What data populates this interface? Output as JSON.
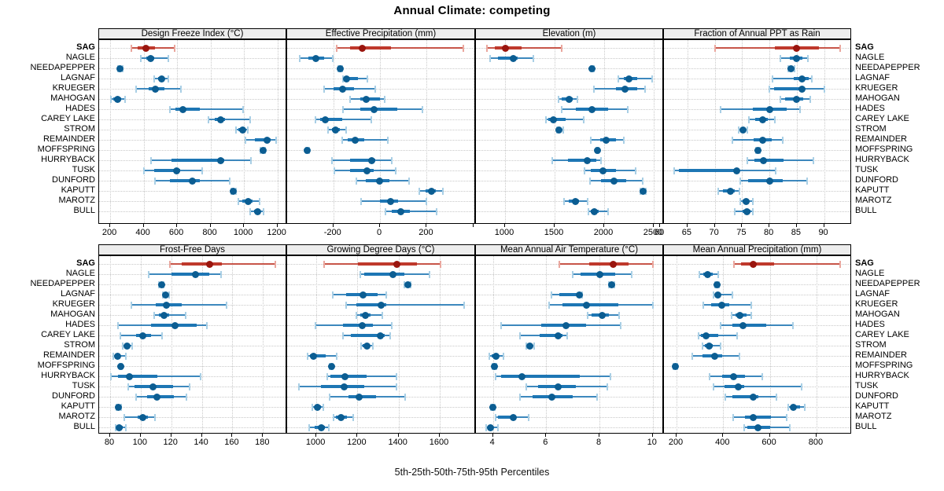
{
  "figure": {
    "title": "Annual Climate: competing",
    "caption": "5th-25th-50th-75th-95th Percentiles"
  },
  "colors": {
    "site_line": "#1d76b4",
    "site_cap": "#a9cfe5",
    "site_dot": "#0b5d92",
    "highlight_line": "#bf392c",
    "highlight_cap": "#eaa79e",
    "highlight_dot": "#9a150e",
    "grid": "#c9c9c9",
    "strip_bg": "#ededed",
    "border": "#000000"
  },
  "chart_data": {
    "type": "dotplot_percentiles",
    "percentiles": [
      "5th",
      "25th",
      "50th",
      "75th",
      "95th"
    ],
    "highlight_site": "SAG",
    "legend_position": "none",
    "grid": "dotted",
    "sites": [
      "SAG",
      "NAGLE",
      "NEEDAPEPPER",
      "LAGNAF",
      "KRUEGER",
      "MAHOGAN",
      "HADES",
      "CAREY LAKE",
      "STROM",
      "REMAINDER",
      "MOFFSPRING",
      "HURRYBACK",
      "TUSK",
      "DUNFORD",
      "KAPUTT",
      "MAROTZ",
      "BULL"
    ],
    "panels": [
      {
        "title": "Design Freeze Index (°C)",
        "row": 0,
        "col": 0,
        "xlim": [
          134,
          1258
        ],
        "ticks": [
          200,
          400,
          600,
          800,
          1000,
          1200
        ],
        "tick_labels": [
          "200",
          "400",
          "600",
          "800",
          "1000",
          "1200"
        ],
        "values": [
          [
            327,
            365,
            412,
            470,
            586
          ],
          [
            385,
            415,
            440,
            465,
            550
          ],
          [
            248,
            255,
            260,
            266,
            276
          ],
          [
            463,
            487,
            507,
            526,
            549
          ],
          [
            355,
            430,
            470,
            525,
            625
          ],
          [
            205,
            220,
            245,
            265,
            290
          ],
          [
            555,
            590,
            635,
            735,
            995
          ],
          [
            790,
            825,
            860,
            885,
            1035
          ],
          [
            950,
            965,
            990,
            1010,
            1025
          ],
          [
            1010,
            1065,
            1140,
            1160,
            1190
          ],
          [
            1100,
            1108,
            1113,
            1118,
            1126
          ],
          [
            445,
            565,
            860,
            880,
            1040
          ],
          [
            400,
            465,
            595,
            620,
            750
          ],
          [
            470,
            555,
            690,
            735,
            915
          ],
          [
            923,
            932,
            938,
            943,
            951
          ],
          [
            965,
            990,
            1025,
            1050,
            1095
          ],
          [
            1035,
            1060,
            1080,
            1095,
            1115
          ]
        ]
      },
      {
        "title": "Effective Precipitation (mm)",
        "row": 0,
        "col": 1,
        "xlim": [
          -398,
          411
        ],
        "ticks": [
          -200,
          0,
          200,
          400
        ],
        "tick_labels": [
          "-200",
          "0",
          "200",
          ""
        ],
        "values": [
          [
            -185,
            -130,
            -75,
            48,
            357
          ],
          [
            -345,
            -307,
            -274,
            -240,
            -201
          ],
          [
            -180,
            -175,
            -171,
            -167,
            -162
          ],
          [
            -158,
            -152,
            -142,
            -95,
            -55
          ],
          [
            -240,
            -200,
            -162,
            -111,
            -19
          ],
          [
            -128,
            -83,
            -58,
            0,
            20
          ],
          [
            -160,
            -85,
            -27,
            74,
            181
          ],
          [
            -276,
            -257,
            -235,
            -162,
            -39
          ],
          [
            -223,
            -207,
            -190,
            -173,
            -145
          ],
          [
            -162,
            -140,
            -108,
            -67,
            34
          ],
          [
            -318,
            -314,
            -311,
            -308,
            -304
          ],
          [
            -207,
            -128,
            -37,
            -22,
            52
          ],
          [
            -195,
            -128,
            -56,
            -28,
            67
          ],
          [
            -100,
            -60,
            -3,
            40,
            126
          ],
          [
            168,
            195,
            220,
            240,
            270
          ],
          [
            -82,
            0,
            45,
            78,
            200
          ],
          [
            22,
            50,
            90,
            128,
            242
          ]
        ]
      },
      {
        "title": "Elevation (m)",
        "row": 0,
        "col": 2,
        "xlim": [
          706,
          2603
        ],
        "ticks": [
          1000,
          1500,
          2000,
          2500
        ],
        "tick_labels": [
          "1000",
          "1500",
          "2000",
          "2500"
        ],
        "values": [
          [
            820,
            900,
            1000,
            1165,
            1575
          ],
          [
            845,
            925,
            1085,
            1125,
            1285
          ],
          [
            1862,
            1872,
            1880,
            1888,
            1898
          ],
          [
            2145,
            2200,
            2250,
            2330,
            2485
          ],
          [
            1895,
            2120,
            2210,
            2330,
            2410
          ],
          [
            1537,
            1570,
            1645,
            1680,
            1730
          ],
          [
            1570,
            1715,
            1880,
            2040,
            2240
          ],
          [
            1415,
            1435,
            1485,
            1610,
            1790
          ],
          [
            1520,
            1530,
            1543,
            1570,
            1590
          ],
          [
            1865,
            1957,
            2016,
            2118,
            2198
          ],
          [
            1920,
            1926,
            1931,
            1936,
            1942
          ],
          [
            1476,
            1636,
            1831,
            1917,
            1970
          ],
          [
            1800,
            1865,
            1990,
            2120,
            2320
          ],
          [
            1855,
            1970,
            2100,
            2225,
            2390
          ],
          [
            2365,
            2380,
            2391,
            2400,
            2418
          ],
          [
            1595,
            1640,
            1707,
            1747,
            1835
          ],
          [
            1840,
            1865,
            1900,
            1945,
            2040
          ]
        ]
      },
      {
        "title": "Fraction of Annual PPT as Rain",
        "row": 0,
        "col": 3,
        "xlim": [
          60.7,
          95.1
        ],
        "ticks": [
          60,
          65,
          70,
          75,
          80,
          85,
          90
        ],
        "tick_labels": [
          "60",
          "65",
          "70",
          "75",
          "80",
          "85",
          "90"
        ],
        "values": [
          [
            70,
            81,
            85,
            89,
            93
          ],
          [
            82,
            83.7,
            85,
            86.1,
            87.1
          ],
          [
            83.5,
            83.8,
            84,
            84.3,
            84.6
          ],
          [
            80.5,
            84.5,
            86,
            87.2,
            87.8
          ],
          [
            80,
            80.9,
            85.9,
            86.3,
            90
          ],
          [
            82,
            82.8,
            84.9,
            86.2,
            87.4
          ],
          [
            71,
            77,
            80,
            83.2,
            85.6
          ],
          [
            76.2,
            77.4,
            78.8,
            79.7,
            81
          ],
          [
            74.4,
            74.8,
            75.1,
            75.5,
            75.9
          ],
          [
            73.2,
            77.1,
            78.7,
            80.4,
            82.4
          ],
          [
            77.6,
            77.8,
            77.9,
            78.1,
            78.3
          ],
          [
            76,
            77.3,
            78.9,
            82.6,
            88
          ],
          [
            62.5,
            63.5,
            74,
            74.3,
            81.1
          ],
          [
            74.6,
            76.1,
            80,
            82.5,
            86.9
          ],
          [
            70.6,
            71.5,
            72.8,
            73.6,
            74.5
          ],
          [
            74.7,
            75.1,
            75.7,
            76.3,
            77
          ],
          [
            73.7,
            75.1,
            75.9,
            76.5,
            77
          ]
        ]
      },
      {
        "title": "Frost-Free Days",
        "row": 1,
        "col": 0,
        "xlim": [
          72.8,
          195.8
        ],
        "ticks": [
          80,
          100,
          120,
          140,
          160,
          180
        ],
        "tick_labels": [
          "80",
          "100",
          "120",
          "140",
          "160",
          "180"
        ],
        "values": [
          [
            119,
            127,
            145,
            153,
            188
          ],
          [
            105,
            120,
            136,
            145,
            152.5
          ],
          [
            112,
            113,
            113.5,
            114,
            115
          ],
          [
            114.5,
            115.5,
            116.2,
            117,
            118.6
          ],
          [
            94,
            110,
            117,
            127,
            156
          ],
          [
            109,
            112,
            115.3,
            118.8,
            129.4
          ],
          [
            85,
            107,
            122.5,
            136.5,
            143.5
          ],
          [
            86.5,
            97,
            101.5,
            107,
            114
          ],
          [
            88.2,
            89.4,
            91.1,
            92.9,
            94.2
          ],
          [
            82,
            83,
            85,
            86.5,
            90.5
          ],
          [
            86.2,
            86.7,
            87,
            87.4,
            87.9
          ],
          [
            80.5,
            85,
            92.5,
            111,
            139.3
          ],
          [
            92,
            96,
            108,
            121,
            132
          ],
          [
            97,
            104,
            110.5,
            121.5,
            130
          ],
          [
            84.3,
            85,
            85.3,
            85.8,
            87
          ],
          [
            89.5,
            98,
            101.5,
            104.5,
            109.2
          ],
          [
            83.5,
            84.5,
            85.7,
            88.2,
            90.5
          ]
        ]
      },
      {
        "title": "Growing Degree Days (°C)",
        "row": 1,
        "col": 1,
        "xlim": [
          858,
          1776
        ],
        "ticks": [
          1000,
          1200,
          1400,
          1600
        ],
        "tick_labels": [
          "1000",
          "1200",
          "1400",
          "1600"
        ],
        "values": [
          [
            1038,
            1204,
            1391,
            1490,
            1604
          ],
          [
            1213,
            1232,
            1372,
            1429,
            1550
          ],
          [
            1429,
            1438,
            1444,
            1450,
            1458
          ],
          [
            1079,
            1143,
            1229,
            1296,
            1340
          ],
          [
            1143,
            1194,
            1315,
            1340,
            1720
          ],
          [
            1194,
            1213,
            1238,
            1264,
            1321
          ],
          [
            994,
            1130,
            1223,
            1276,
            1366
          ],
          [
            1130,
            1168,
            1312,
            1334,
            1360
          ],
          [
            1219,
            1226,
            1245,
            1257,
            1274
          ],
          [
            958,
            968,
            987,
            1047,
            1098
          ],
          [
            1066,
            1070,
            1073,
            1077,
            1081
          ],
          [
            1054,
            1070,
            1140,
            1245,
            1390
          ],
          [
            915,
            1022,
            1136,
            1232,
            1390
          ],
          [
            1064,
            1155,
            1209,
            1289,
            1430
          ],
          [
            981,
            994,
            1006,
            1022,
            1034
          ],
          [
            1083,
            1096,
            1121,
            1149,
            1181
          ],
          [
            964,
            990,
            1025,
            1041,
            1060
          ]
        ]
      },
      {
        "title": "Mean Annual Air Temperature (°C)",
        "row": 1,
        "col": 2,
        "xlim": [
          3.36,
          10.42
        ],
        "ticks": [
          4,
          6,
          8,
          10
        ],
        "tick_labels": [
          "4",
          "6",
          "8",
          "10"
        ],
        "values": [
          [
            6.5,
            7.6,
            8.5,
            9.1,
            10.0
          ],
          [
            7.0,
            7.3,
            8.0,
            8.6,
            9.2
          ],
          [
            8.35,
            8.4,
            8.45,
            8.5,
            8.55
          ],
          [
            6.2,
            6.5,
            7.25,
            7.3,
            7.35
          ],
          [
            6.1,
            6.6,
            7.5,
            8.7,
            10.0
          ],
          [
            7.55,
            7.7,
            8.1,
            8.35,
            8.75
          ],
          [
            4.3,
            5.8,
            6.75,
            7.5,
            8.8
          ],
          [
            5.0,
            5.75,
            6.45,
            6.6,
            6.8
          ],
          [
            5.26,
            5.32,
            5.38,
            5.45,
            5.56
          ],
          [
            3.85,
            3.95,
            4.1,
            4.2,
            4.4
          ],
          [
            3.98,
            4.02,
            4.06,
            4.1,
            4.13
          ],
          [
            4.1,
            4.3,
            5.1,
            7.25,
            8.4
          ],
          [
            5.25,
            5.7,
            6.45,
            7.1,
            8.3
          ],
          [
            5.0,
            5.5,
            6.2,
            7.0,
            7.9
          ],
          [
            3.93,
            3.97,
            4.0,
            4.04,
            4.08
          ],
          [
            4.1,
            4.2,
            4.77,
            4.85,
            5.35
          ],
          [
            3.73,
            3.8,
            3.9,
            4.0,
            4.2
          ]
        ]
      },
      {
        "title": "Mean Annual Precipitation (mm)",
        "row": 1,
        "col": 3,
        "xlim": [
          146,
          952
        ],
        "ticks": [
          200,
          400,
          600,
          800
        ],
        "tick_labels": [
          "200",
          "400",
          "600",
          "800"
        ],
        "values": [
          [
            445,
            475,
            530,
            617,
            900
          ],
          [
            298,
            313,
            332,
            354,
            380
          ],
          [
            366,
            370,
            373,
            377,
            381
          ],
          [
            360,
            366,
            377,
            390,
            440
          ],
          [
            315,
            350,
            395,
            425,
            520
          ],
          [
            436,
            453,
            470,
            500,
            522
          ],
          [
            390,
            440,
            485,
            585,
            700
          ],
          [
            295,
            306,
            326,
            380,
            460
          ],
          [
            310,
            320,
            340,
            355,
            388
          ],
          [
            268,
            310,
            365,
            395,
            470
          ],
          [
            188,
            192,
            196,
            200,
            204
          ],
          [
            343,
            394,
            444,
            494,
            567
          ],
          [
            360,
            405,
            465,
            490,
            737
          ],
          [
            410,
            438,
            530,
            550,
            628
          ],
          [
            680,
            690,
            700,
            730,
            750
          ],
          [
            444,
            494,
            530,
            606,
            671
          ],
          [
            490,
            505,
            548,
            600,
            685
          ]
        ]
      }
    ]
  }
}
